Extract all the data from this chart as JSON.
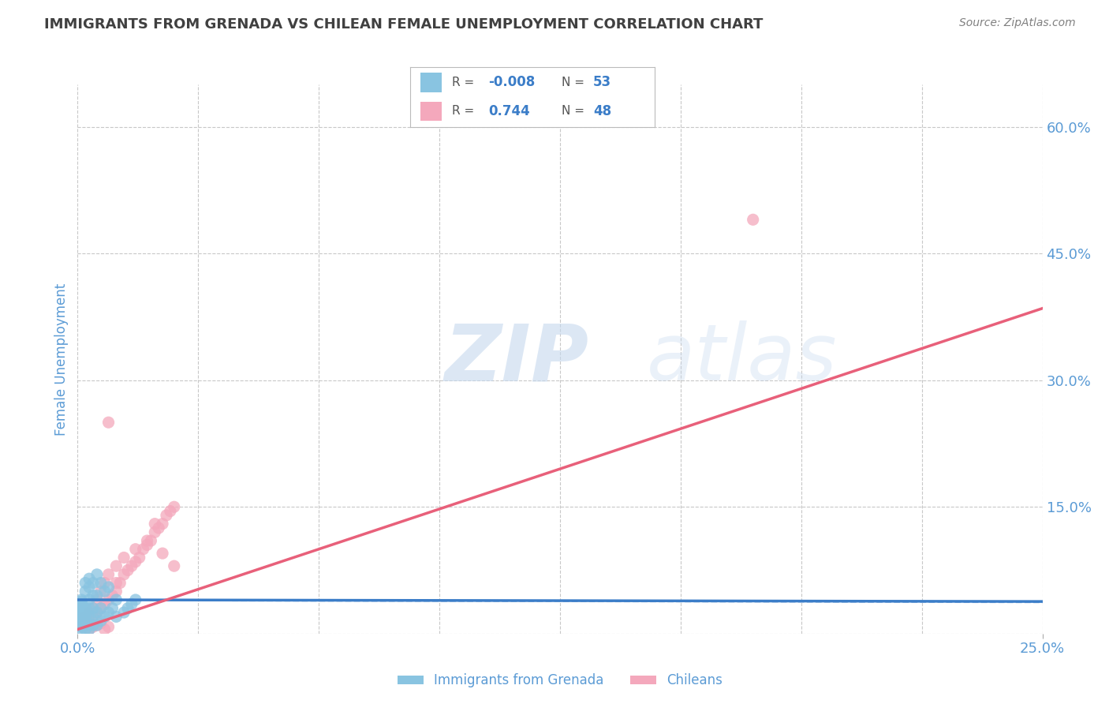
{
  "title": "IMMIGRANTS FROM GRENADA VS CHILEAN FEMALE UNEMPLOYMENT CORRELATION CHART",
  "source": "Source: ZipAtlas.com",
  "xlabel": "",
  "ylabel": "Female Unemployment",
  "legend_labels": [
    "Immigrants from Grenada",
    "Chileans"
  ],
  "legend_r_values": [
    "-0.008",
    "0.744"
  ],
  "legend_n_values": [
    "53",
    "48"
  ],
  "xlim": [
    0.0,
    0.25
  ],
  "ylim": [
    0.0,
    0.65
  ],
  "right_yticks": [
    0.0,
    0.15,
    0.3,
    0.45,
    0.6
  ],
  "right_yticklabels": [
    "",
    "15.0%",
    "30.0%",
    "45.0%",
    "60.0%"
  ],
  "xtick_labels": [
    "0.0%",
    "25.0%"
  ],
  "xtick_positions": [
    0.0,
    0.25
  ],
  "blue_color": "#89c4e1",
  "pink_color": "#f4a8bc",
  "blue_line_color": "#3b7dc8",
  "pink_line_color": "#e8607a",
  "title_color": "#404040",
  "source_color": "#808080",
  "axis_label_color": "#5b9bd5",
  "legend_r_color": "#3b7dc8",
  "watermark_zip": "ZIP",
  "watermark_atlas": "atlas",
  "blue_scatter_x": [
    0.001,
    0.001,
    0.001,
    0.001,
    0.001,
    0.001,
    0.001,
    0.001,
    0.001,
    0.001,
    0.001,
    0.001,
    0.001,
    0.001,
    0.001,
    0.002,
    0.002,
    0.002,
    0.002,
    0.002,
    0.002,
    0.002,
    0.002,
    0.003,
    0.003,
    0.003,
    0.003,
    0.003,
    0.003,
    0.003,
    0.004,
    0.004,
    0.004,
    0.004,
    0.004,
    0.005,
    0.005,
    0.005,
    0.005,
    0.006,
    0.006,
    0.006,
    0.007,
    0.007,
    0.008,
    0.008,
    0.009,
    0.01,
    0.01,
    0.012,
    0.013,
    0.014,
    0.015
  ],
  "blue_scatter_y": [
    0.005,
    0.008,
    0.01,
    0.013,
    0.015,
    0.018,
    0.02,
    0.022,
    0.025,
    0.028,
    0.03,
    0.033,
    0.035,
    0.038,
    0.04,
    0.005,
    0.01,
    0.015,
    0.02,
    0.025,
    0.03,
    0.05,
    0.06,
    0.005,
    0.01,
    0.02,
    0.03,
    0.04,
    0.055,
    0.065,
    0.01,
    0.02,
    0.03,
    0.045,
    0.06,
    0.01,
    0.025,
    0.045,
    0.07,
    0.015,
    0.03,
    0.06,
    0.02,
    0.05,
    0.025,
    0.055,
    0.03,
    0.02,
    0.04,
    0.025,
    0.03,
    0.035,
    0.04
  ],
  "pink_scatter_x": [
    0.001,
    0.002,
    0.002,
    0.003,
    0.003,
    0.004,
    0.004,
    0.005,
    0.005,
    0.006,
    0.006,
    0.007,
    0.007,
    0.008,
    0.008,
    0.009,
    0.01,
    0.01,
    0.011,
    0.012,
    0.013,
    0.014,
    0.015,
    0.016,
    0.017,
    0.018,
    0.019,
    0.02,
    0.021,
    0.022,
    0.023,
    0.024,
    0.025,
    0.003,
    0.004,
    0.005,
    0.006,
    0.007,
    0.008,
    0.01,
    0.012,
    0.015,
    0.018,
    0.02,
    0.025,
    0.022,
    0.008,
    0.175
  ],
  "pink_scatter_y": [
    0.008,
    0.01,
    0.02,
    0.015,
    0.025,
    0.02,
    0.03,
    0.025,
    0.04,
    0.03,
    0.05,
    0.035,
    0.06,
    0.04,
    0.07,
    0.045,
    0.05,
    0.08,
    0.06,
    0.07,
    0.075,
    0.08,
    0.085,
    0.09,
    0.1,
    0.105,
    0.11,
    0.12,
    0.125,
    0.13,
    0.14,
    0.145,
    0.15,
    0.005,
    0.008,
    0.01,
    0.012,
    0.005,
    0.008,
    0.06,
    0.09,
    0.1,
    0.11,
    0.13,
    0.08,
    0.095,
    0.25,
    0.49
  ],
  "blue_line_x": [
    0.0,
    0.25
  ],
  "blue_line_y": [
    0.04,
    0.038
  ],
  "pink_line_x": [
    0.0,
    0.25
  ],
  "pink_line_y": [
    0.005,
    0.385
  ],
  "background_color": "#ffffff",
  "grid_color": "#c8c8c8"
}
